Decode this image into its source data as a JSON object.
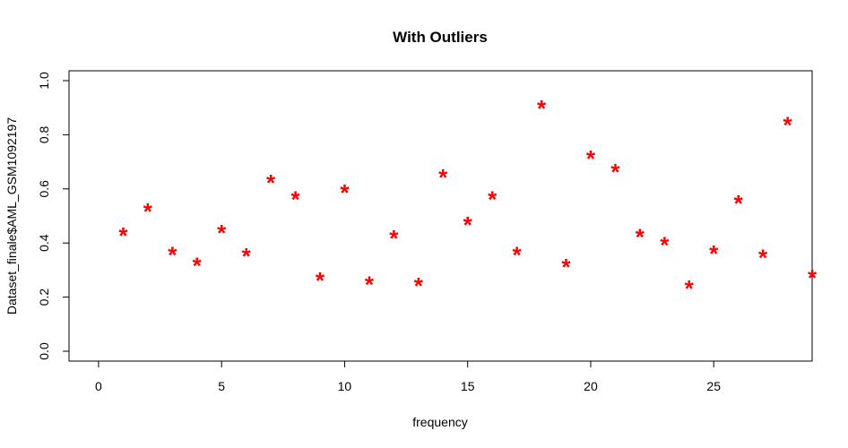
{
  "chart_data": {
    "type": "scatter",
    "title": "With Outliers",
    "xlabel": "frequency",
    "ylabel": "Dataset_finale$AML_GSM1092197",
    "xlim": [
      -1.2,
      29
    ],
    "ylim": [
      0,
      1
    ],
    "xticks": [
      0,
      5,
      10,
      15,
      20,
      25
    ],
    "yticks": [
      0.0,
      0.2,
      0.4,
      0.6,
      0.8,
      1.0
    ],
    "ytick_labels": [
      "0.0",
      "0.2",
      "0.4",
      "0.6",
      "0.8",
      "1.0"
    ],
    "marker": "*",
    "marker_color": "#ff0000",
    "grid": false,
    "series": [
      {
        "x": [
          1,
          2,
          3,
          4,
          5,
          6,
          7,
          8,
          9,
          10,
          11,
          12,
          13,
          14,
          15,
          16,
          17,
          18,
          19,
          20,
          21,
          22,
          23,
          24,
          25,
          26,
          27,
          28,
          29
        ],
        "y": [
          0.44,
          0.53,
          0.37,
          0.33,
          0.45,
          0.365,
          0.635,
          0.575,
          0.275,
          0.6,
          0.26,
          0.43,
          0.255,
          0.655,
          0.48,
          0.575,
          0.37,
          0.91,
          0.325,
          0.725,
          0.675,
          0.435,
          0.405,
          0.245,
          0.375,
          0.56,
          0.36,
          0.85,
          0.285
        ]
      }
    ]
  }
}
